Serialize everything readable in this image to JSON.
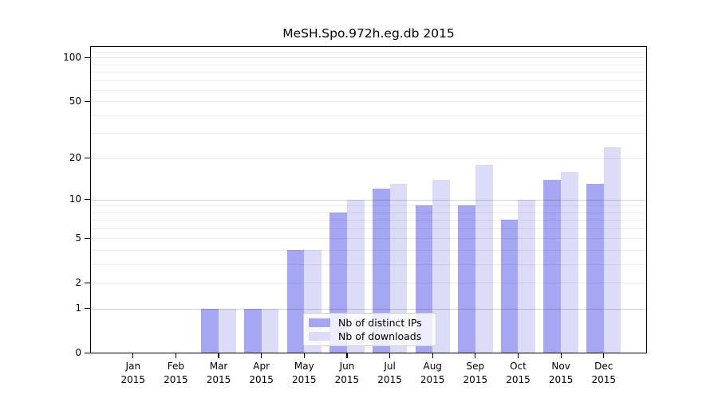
{
  "chart_data": {
    "type": "bar",
    "title": "MeSH.Spo.972h.eg.db 2015",
    "categories": [
      "Jan",
      "Feb",
      "Mar",
      "Apr",
      "May",
      "Jun",
      "Jul",
      "Aug",
      "Sep",
      "Oct",
      "Nov",
      "Dec"
    ],
    "x_tick_year": "2015",
    "series": [
      {
        "name": "Nb of distinct IPs",
        "color": "#a6a6f2",
        "values": [
          0,
          0,
          1,
          1,
          4,
          8,
          12,
          9,
          9,
          7,
          14,
          13
        ]
      },
      {
        "name": "Nb of downloads",
        "color": "#dcdcf8",
        "values": [
          0,
          0,
          1,
          1,
          4,
          10,
          13,
          14,
          18,
          10,
          16,
          24
        ]
      }
    ],
    "yscale": "log1p",
    "y_ticks": [
      0,
      1,
      2,
      5,
      10,
      20,
      50,
      100
    ],
    "ylim": [
      0,
      124
    ],
    "grid": true,
    "legend_position": "bottom-center-inside",
    "colors": {
      "frame": "#000000",
      "grid_minor": "rgba(0,0,0,0.07)",
      "grid_major": "rgba(0,0,0,0.17)",
      "grid_medium": "rgba(0,0,0,0.10)"
    }
  }
}
